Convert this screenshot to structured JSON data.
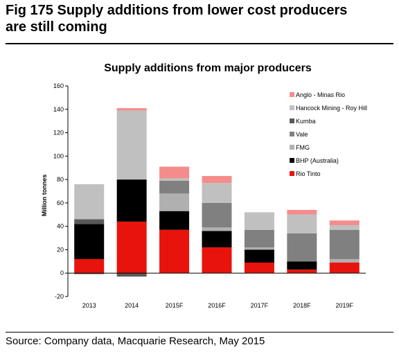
{
  "figure": {
    "title_line1": "Fig 175   Supply additions from lower cost producers",
    "title_line2": "are still coming",
    "source": "Source: Company data, Macquarie Research, May 2015"
  },
  "chart_data": {
    "type": "bar",
    "stacked": true,
    "title": "Supply additions from major producers",
    "xlabel": "",
    "ylabel": "Million tonnes",
    "ylim": [
      -20,
      160
    ],
    "yticks": [
      -20,
      0,
      20,
      40,
      60,
      80,
      100,
      120,
      140,
      160
    ],
    "categories": [
      "2013",
      "2014",
      "2015F",
      "2016F",
      "2017F",
      "2018F",
      "2019F"
    ],
    "legend_position": "top-right",
    "series": [
      {
        "name": "Rio Tinto",
        "color": "#e8130d",
        "values": [
          12,
          44,
          37,
          22,
          9,
          3,
          9
        ]
      },
      {
        "name": "BHP (Australia)",
        "color": "#000000",
        "values": [
          30,
          36,
          16,
          14,
          11,
          7,
          0
        ]
      },
      {
        "name": "FMG",
        "color": "#b0b0b0",
        "values": [
          0,
          0,
          15,
          3,
          2,
          0,
          3
        ]
      },
      {
        "name": "Vale",
        "color": "#808080",
        "values": [
          -1,
          0,
          11,
          21,
          15,
          24,
          25
        ]
      },
      {
        "name": "Kumba",
        "color": "#595959",
        "values": [
          4,
          -3,
          0,
          0,
          0,
          0,
          0
        ]
      },
      {
        "name": "Hancock Mining - Roy Hill",
        "color": "#c0c0c0",
        "values": [
          30,
          59,
          2,
          17,
          15,
          16,
          4
        ]
      },
      {
        "name": "Anglo - Minas Rio",
        "color": "#f58c8c",
        "values": [
          0,
          2,
          10,
          6,
          0,
          4,
          4
        ]
      }
    ]
  }
}
